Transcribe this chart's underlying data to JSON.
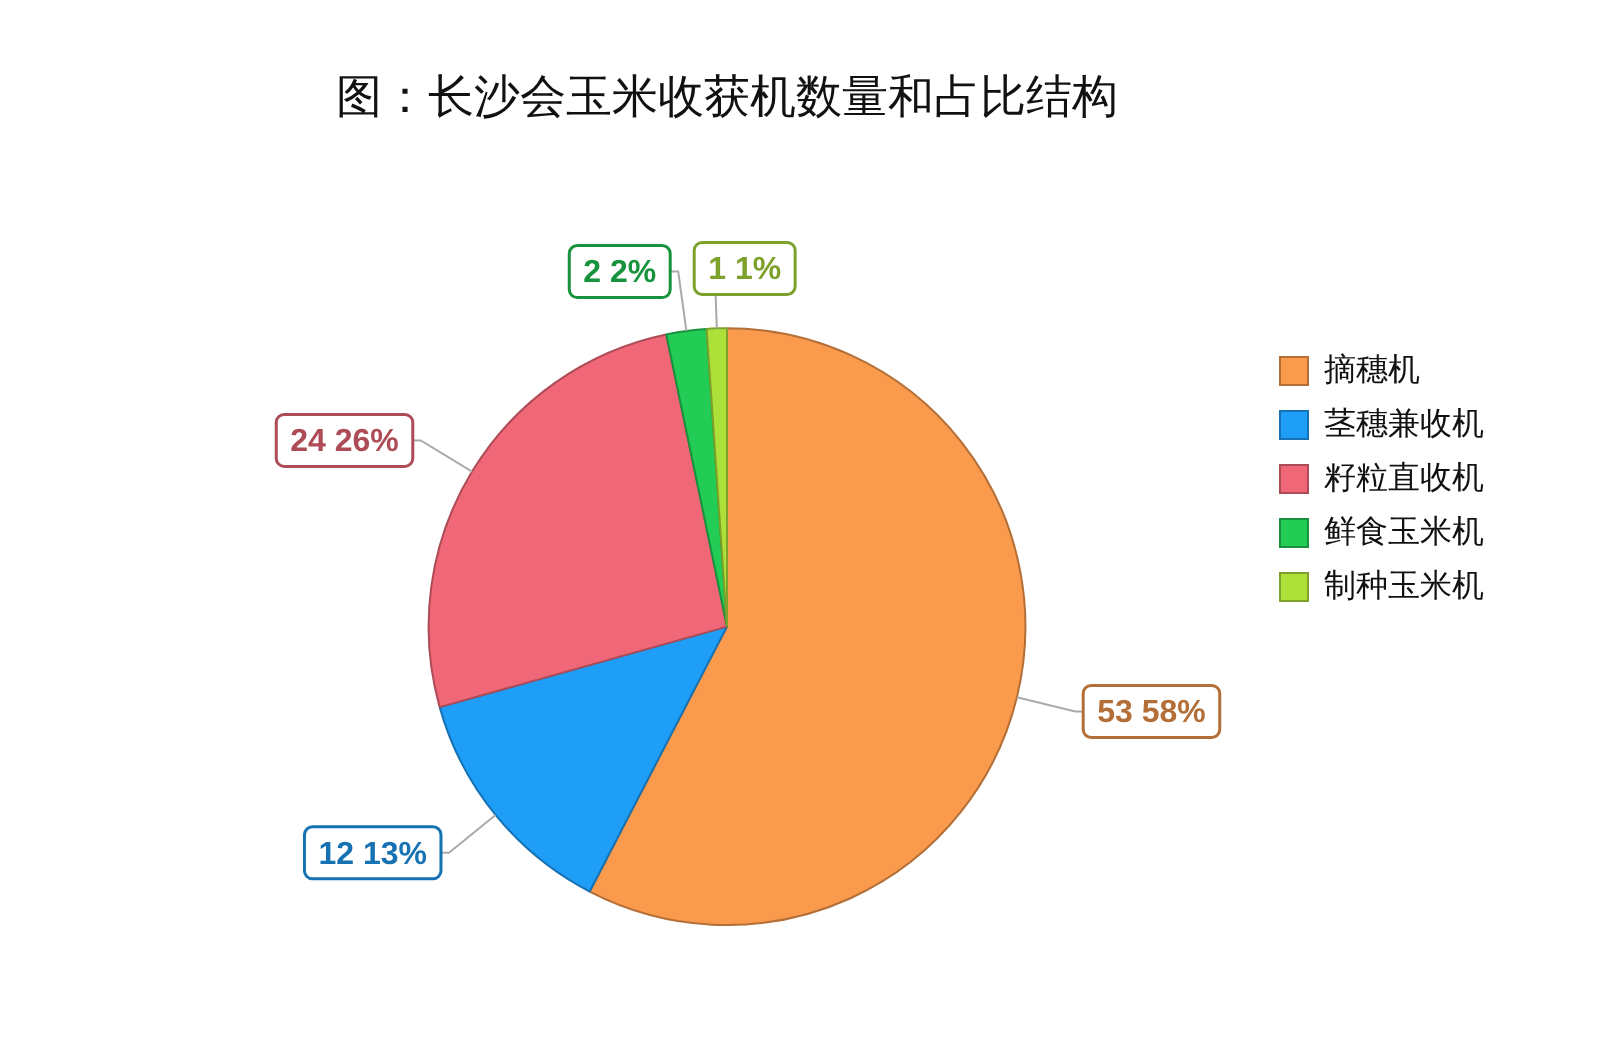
{
  "chart_data": {
    "type": "pie",
    "title": "图：长沙会玉米收获机数量和占比结构",
    "categories": [
      "摘穗机",
      "茎穗兼收机",
      "籽粒直收机",
      "鲜食玉米机",
      "制种玉米机"
    ],
    "values": [
      53,
      12,
      24,
      2,
      1
    ],
    "colors": [
      "#f99a4c",
      "#1e9ef7",
      "#f06878",
      "#22cc55",
      "#aee03a"
    ],
    "value_labels": [
      "53 58%",
      "12 13%",
      "24 26%",
      "2 2%",
      "1 1%"
    ],
    "legend": "right"
  }
}
